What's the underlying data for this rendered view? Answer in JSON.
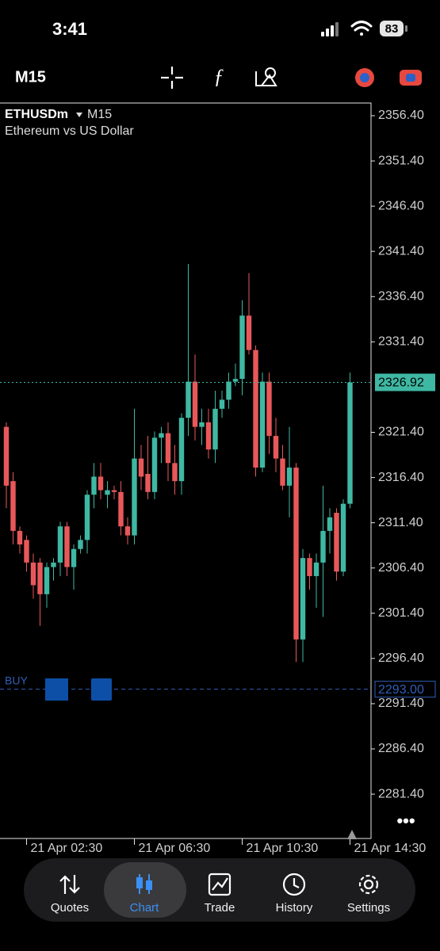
{
  "status_bar": {
    "time": "3:41",
    "battery": "83"
  },
  "chart_data": {
    "type": "candlestick",
    "symbol": "ETHUSDm",
    "timeframe": "M15",
    "description": "Ethereum vs US Dollar",
    "categories": [
      null,
      null,
      null,
      "21 Apr 02:30",
      null,
      null,
      null,
      null,
      null,
      null,
      null,
      null,
      null,
      null,
      null,
      null,
      null,
      null,
      null,
      "21 Apr 06:30",
      null,
      null,
      null,
      null,
      null,
      null,
      null,
      null,
      null,
      null,
      null,
      null,
      null,
      null,
      null,
      "21 Apr 10:30",
      null,
      null,
      null,
      null,
      null,
      null,
      null,
      null,
      null,
      null,
      null,
      null,
      null,
      null,
      null,
      "21 Apr 14:30"
    ],
    "open": [
      2322,
      2316,
      2310.5,
      2309.5,
      2307,
      2307,
      2303.5,
      2306.5,
      2307,
      2311,
      2306.5,
      2308.5,
      2309.5,
      2314.5,
      2316.5,
      2314.5,
      2315,
      2314.8,
      2311,
      2310,
      2318.5,
      2316.8,
      2314.8,
      2320.8,
      2321.3,
      2318,
      2316,
      2323,
      2327,
      2322,
      2322.5,
      2319.5,
      2324,
      2325,
      2327,
      2327.3,
      2334.3,
      2330.5,
      2317.5,
      2327,
      2321,
      2318.5,
      2315.5,
      2317.5,
      2298.5,
      2307.5,
      2305.5,
      2307,
      2310.5,
      2312.5,
      2306,
      2313.5
    ],
    "high": [
      2322.5,
      2317,
      2311,
      2310,
      2308,
      2307.5,
      2307,
      2307.5,
      2311.5,
      2311.5,
      2309,
      2310,
      2315,
      2318,
      2318,
      2316,
      2315.5,
      2316,
      2312,
      2324,
      2320,
      2321,
      2321.5,
      2322,
      2322.5,
      2320,
      2323.5,
      2340,
      2330,
      2324,
      2324,
      2326,
      2326,
      2328,
      2329,
      2336,
      2339,
      2331,
      2328,
      2328,
      2323,
      2320,
      2322,
      2318,
      2308.5,
      2308,
      2308,
      2315.5,
      2313,
      2313,
      2314,
      2328
    ],
    "low": [
      2313,
      2309,
      2308,
      2306,
      2303,
      2300,
      2302,
      2305,
      2305.5,
      2305.5,
      2304,
      2308,
      2308,
      2313,
      2314,
      2313,
      2314,
      2310,
      2309,
      2309,
      2315,
      2314,
      2314,
      2318,
      2316,
      2314.5,
      2314.5,
      2321,
      2320.5,
      2320,
      2318.5,
      2318,
      2323,
      2324,
      2326.5,
      2325.5,
      2330,
      2316.5,
      2317,
      2319,
      2317,
      2315,
      2312,
      2296,
      2296,
      2304,
      2302,
      2301,
      2308,
      2305,
      2305.5,
      2313
    ],
    "close": [
      2315.5,
      2310.5,
      2309,
      2307,
      2304.5,
      2303.5,
      2306.5,
      2307,
      2311,
      2306.5,
      2308.5,
      2309.5,
      2314.5,
      2316.5,
      2315,
      2315,
      2314.8,
      2311,
      2310,
      2318.5,
      2316.5,
      2314.8,
      2320.8,
      2321.3,
      2318,
      2316,
      2323,
      2327,
      2322,
      2322.5,
      2319.5,
      2324,
      2325,
      2327,
      2327.3,
      2334.3,
      2330.5,
      2317.5,
      2327,
      2321,
      2318.5,
      2315.5,
      2317.5,
      2298.5,
      2307.5,
      2305.5,
      2307,
      2310.5,
      2312,
      2306,
      2313.5,
      2326.92
    ],
    "up_color": "#3fb8a3",
    "down_color": "#e8585a",
    "ylim": [
      2276.5,
      2357.8
    ],
    "yticks": [
      {
        "value": 2356.4,
        "label": "2356.40"
      },
      {
        "value": 2351.4,
        "label": "2351.40"
      },
      {
        "value": 2346.4,
        "label": "2346.40"
      },
      {
        "value": 2341.4,
        "label": "2341.40"
      },
      {
        "value": 2336.4,
        "label": "2336.40"
      },
      {
        "value": 2331.4,
        "label": "2331.40"
      },
      {
        "value": 2321.4,
        "label": "2321.40"
      },
      {
        "value": 2316.4,
        "label": "2316.40"
      },
      {
        "value": 2311.4,
        "label": "2311.40"
      },
      {
        "value": 2306.4,
        "label": "2306.40"
      },
      {
        "value": 2301.4,
        "label": "2301.40"
      },
      {
        "value": 2296.4,
        "label": "2296.40"
      },
      {
        "value": 2291.4,
        "label": "2291.40"
      },
      {
        "value": 2286.4,
        "label": "2286.40"
      },
      {
        "value": 2281.4,
        "label": "2281.40"
      }
    ],
    "current_price": 2326.92,
    "order": {
      "label": "BUY",
      "price": {
        "value": 2293,
        "label": "2293.00"
      },
      "color": "#2f5fb8"
    }
  },
  "nav": {
    "items": [
      "Quotes",
      "Chart",
      "Trade",
      "History",
      "Settings"
    ]
  }
}
